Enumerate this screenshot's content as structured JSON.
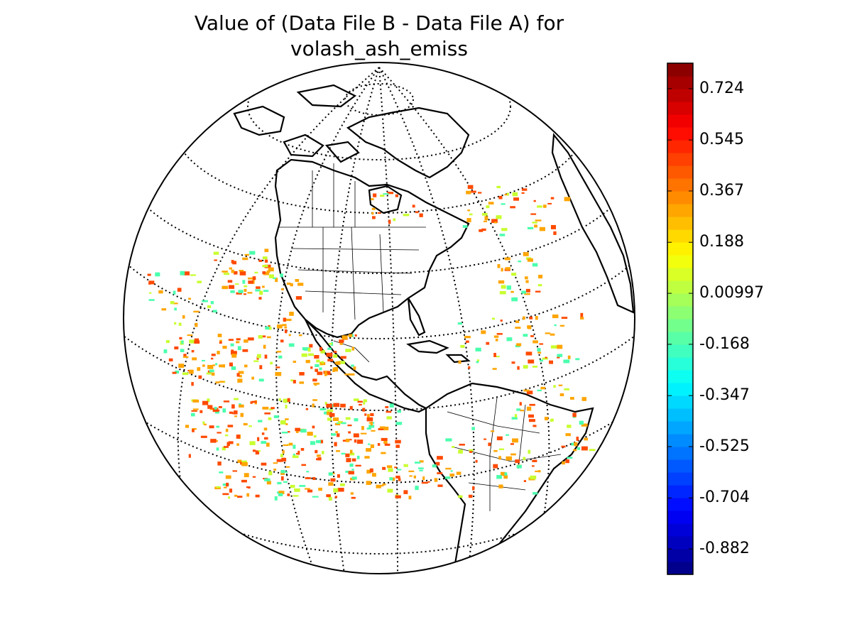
{
  "title": {
    "line1": "Value of (Data File B - Data File A) for",
    "line2": "volash_ash_emiss"
  },
  "colorbar": {
    "vmin": -0.971,
    "vmax": 0.813,
    "levels": 40,
    "colormap": "jet",
    "ticks": [
      {
        "value": 0.724,
        "label": "0.724"
      },
      {
        "value": 0.545,
        "label": "0.545"
      },
      {
        "value": 0.367,
        "label": "0.367"
      },
      {
        "value": 0.188,
        "label": "0.188"
      },
      {
        "value": 0.00997,
        "label": "0.00997"
      },
      {
        "value": -0.168,
        "label": "-0.168"
      },
      {
        "value": -0.347,
        "label": "-0.347"
      },
      {
        "value": -0.525,
        "label": "-0.525"
      },
      {
        "value": -0.704,
        "label": "-0.704"
      },
      {
        "value": -0.882,
        "label": "-0.882"
      }
    ]
  },
  "map": {
    "projection": "orthographic",
    "center_region": "Americas",
    "graticule": "dotted",
    "coastlines": true,
    "country_borders": true,
    "state_borders": true,
    "colors": {
      "ocean": "#ffffff",
      "coastline": "#000000",
      "positive_high": "#ff4a00",
      "positive_mid": "#ffa500",
      "near_zero": "#c8ff2f",
      "slight_negative": "#4affad"
    }
  }
}
